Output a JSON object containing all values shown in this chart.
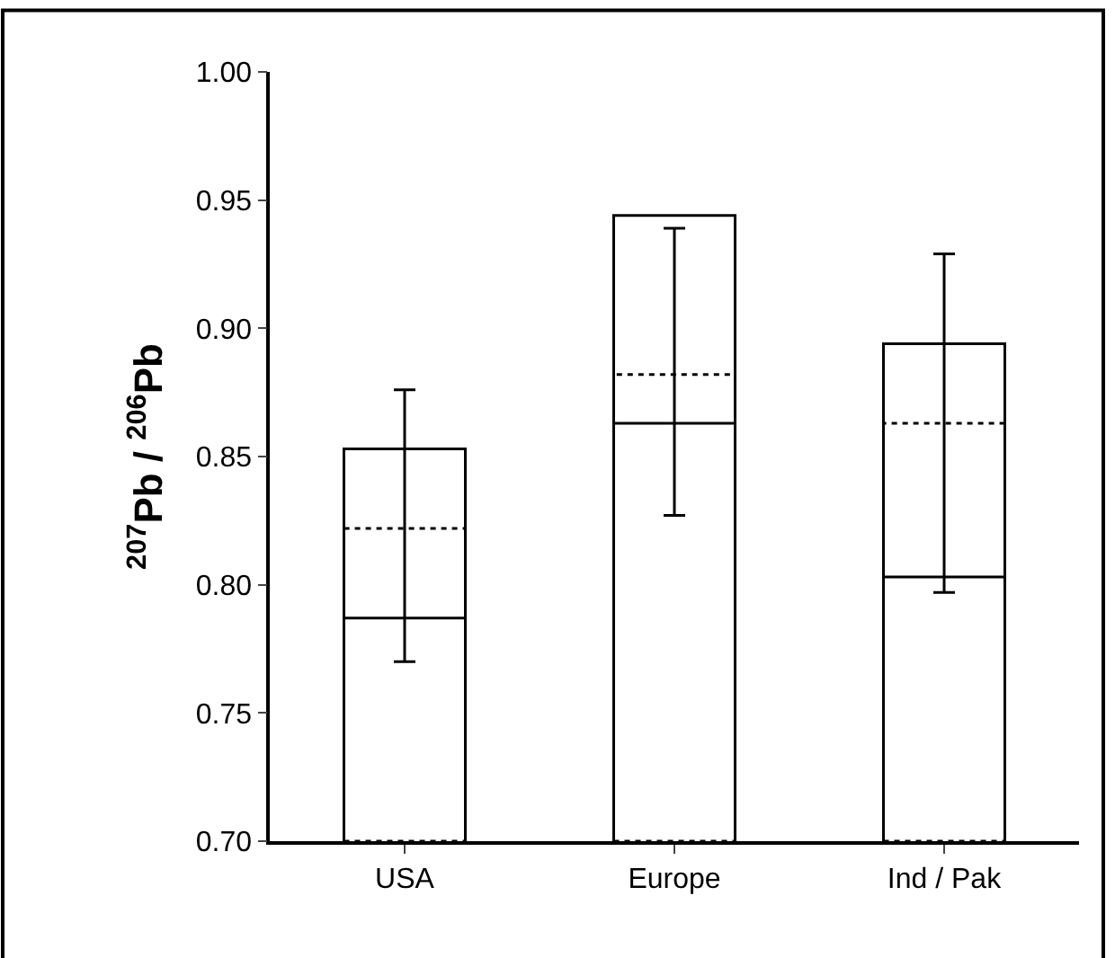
{
  "chart_data": {
    "type": "bar",
    "ylabel": "$^{207}$Pb / $^{206}$Pb",
    "categories": [
      "USA",
      "Europe",
      "Ind / Pak"
    ],
    "series": [
      {
        "color": "#000000",
        "line_style": "solid",
        "values": [
          0.853,
          0.944,
          0.894
        ]
      },
      {
        "color": "#000000",
        "line_style": "solid",
        "values": [
          0.787,
          0.863,
          0.803
        ]
      },
      {
        "color": "#000000",
        "line_style": "dotted",
        "values": [
          0.822,
          0.882,
          0.863
        ],
        "errors": [
          [
            0.77,
            0.876
          ],
          [
            0.827,
            0.939
          ],
          [
            0.797,
            0.929
          ]
        ]
      }
    ],
    "ylim": [
      0.7,
      1.0
    ],
    "yticks": [
      {
        "value": 0.7,
        "label": "0.70"
      },
      {
        "value": 0.75,
        "label": "0.75"
      },
      {
        "value": 0.8,
        "label": "0.80"
      },
      {
        "value": 0.85,
        "label": "0.85"
      },
      {
        "value": 0.9,
        "label": "0.90"
      },
      {
        "value": 0.95,
        "label": "0.95"
      },
      {
        "value": 1.0,
        "label": "1.00"
      }
    ],
    "tick_labels": [
      "x",
      "y"
    ]
  }
}
